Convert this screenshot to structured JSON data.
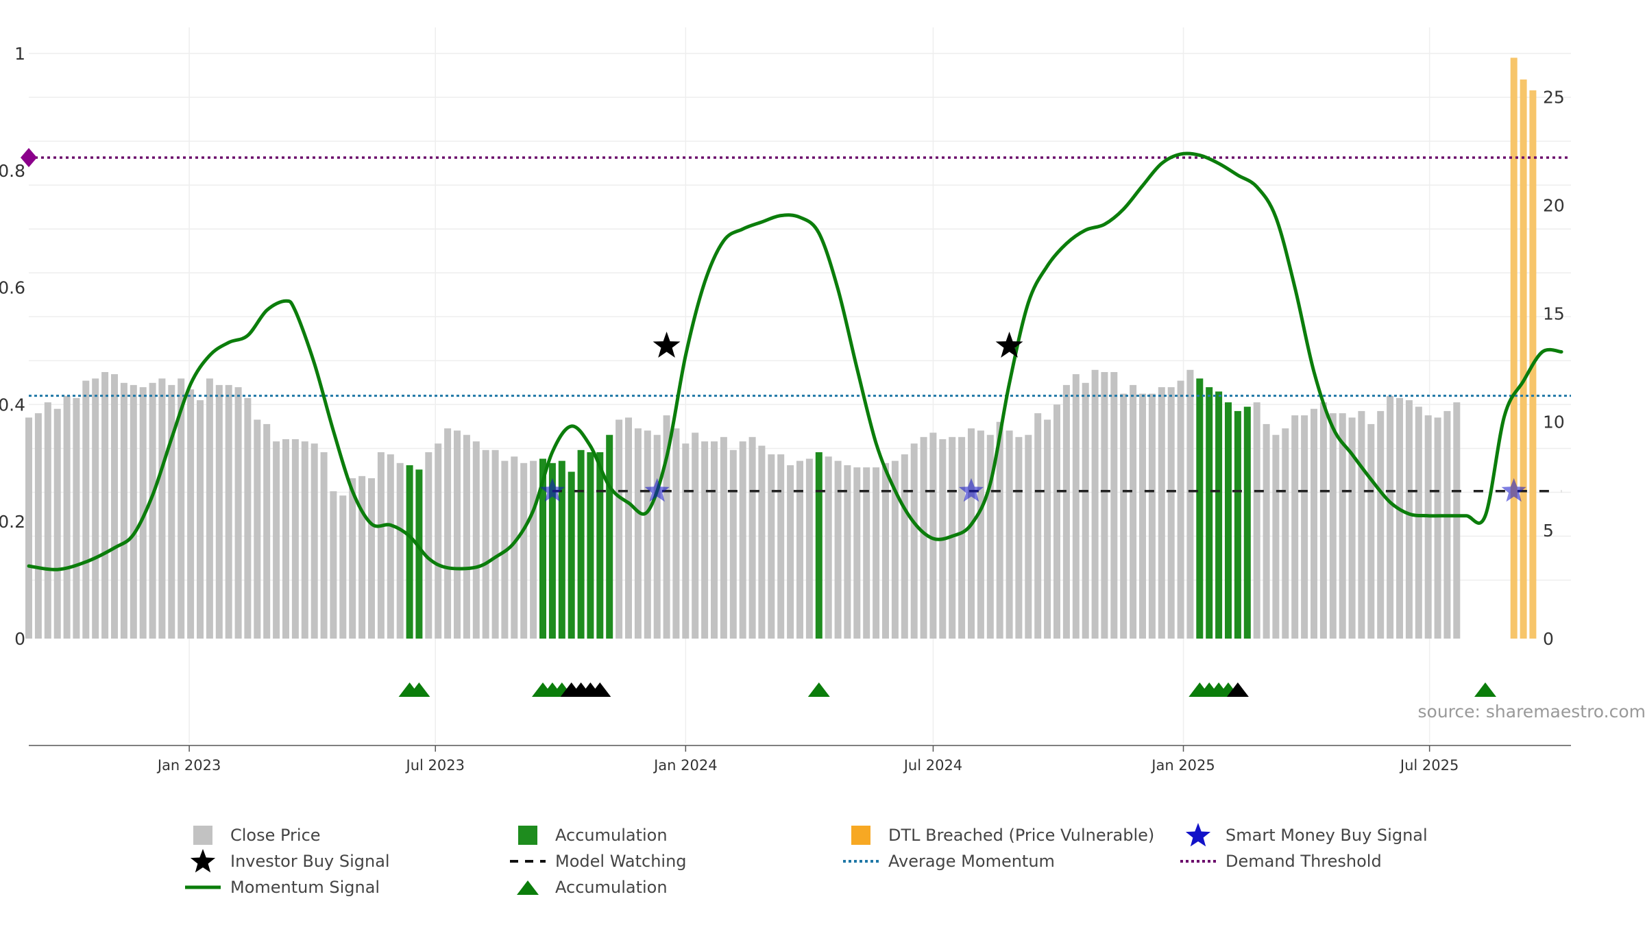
{
  "chart_data": {
    "type": "bar",
    "source_text": "source: sharemaestro.com",
    "left_axis": {
      "range": [
        0,
        1
      ],
      "ticks": [
        "0",
        "0.2",
        "0.4",
        "0.6",
        "0.8",
        "1"
      ]
    },
    "right_axis": {
      "range": [
        0,
        27
      ],
      "ticks": [
        "0",
        "5",
        "10",
        "15",
        "20",
        "25"
      ]
    },
    "x_axis": {
      "start": "2022-09-05",
      "end": "2025-10-13",
      "ticks": [
        {
          "date": "2023-01-01",
          "label": "Jan 2023"
        },
        {
          "date": "2023-07-01",
          "label": "Jul 2023"
        },
        {
          "date": "2024-01-01",
          "label": "Jan 2024"
        },
        {
          "date": "2024-07-01",
          "label": "Jul 2024"
        },
        {
          "date": "2025-01-01",
          "label": "Jan 2025"
        },
        {
          "date": "2025-07-01",
          "label": "Jul 2025"
        }
      ]
    },
    "bars_start_week": "2022-09-05",
    "bars_interval_days": 7,
    "close_price": [
      10.2,
      10.4,
      10.9,
      10.6,
      11.2,
      11.1,
      11.9,
      12.0,
      12.3,
      12.2,
      11.8,
      11.7,
      11.6,
      11.8,
      12.0,
      11.7,
      12.0,
      11.5,
      11.0,
      12.0,
      11.7,
      11.7,
      11.6,
      11.1,
      10.1,
      9.9,
      9.1,
      9.2,
      9.2,
      9.1,
      9.0,
      8.6,
      6.8,
      6.6,
      7.4,
      7.5,
      7.4,
      8.6,
      8.5,
      8.1,
      8.0,
      7.8,
      8.6,
      9.0,
      9.7,
      9.6,
      9.4,
      9.1,
      8.7,
      8.7,
      8.2,
      8.4,
      8.1,
      8.2,
      8.3,
      8.1,
      8.2,
      7.7,
      8.7,
      8.6,
      8.6,
      9.4,
      10.1,
      10.2,
      9.7,
      9.6,
      9.4,
      10.3,
      9.7,
      9.0,
      9.5,
      9.1,
      9.1,
      9.3,
      8.7,
      9.1,
      9.3,
      8.9,
      8.5,
      8.5,
      8.0,
      8.2,
      8.3,
      8.6,
      8.4,
      8.2,
      8.0,
      7.9,
      7.9,
      7.9,
      8.1,
      8.2,
      8.5,
      9.0,
      9.3,
      9.5,
      9.2,
      9.3,
      9.3,
      9.7,
      9.6,
      9.4,
      10.0,
      9.6,
      9.3,
      9.4,
      10.4,
      10.1,
      10.8,
      11.7,
      12.2,
      11.8,
      12.4,
      12.3,
      12.3,
      11.3,
      11.7,
      11.3,
      11.3,
      11.6,
      11.6,
      11.9,
      12.4,
      12.0,
      11.6,
      11.4,
      10.9,
      10.5,
      10.7,
      10.9,
      9.9,
      9.4,
      9.7,
      10.3,
      10.3,
      10.6,
      10.9,
      10.4,
      10.4,
      10.2,
      10.5,
      9.9,
      10.5,
      11.2,
      11.1,
      11.0,
      10.7,
      10.3,
      10.2,
      10.5,
      10.9
    ],
    "accumulation_weeks": [
      40,
      41,
      54,
      55,
      56,
      57,
      58,
      59,
      60,
      61,
      83,
      123,
      124,
      125,
      126,
      127,
      128,
      153
    ],
    "dtl_breached": {
      "start_week": 156,
      "values": [
        26.8,
        25.8,
        25.3
      ]
    },
    "momentum_signal": {
      "points": [
        [
          "2022-09-05",
          0.124
        ],
        [
          "2022-09-26",
          0.118
        ],
        [
          "2022-10-17",
          0.131
        ],
        [
          "2022-11-07",
          0.155
        ],
        [
          "2022-11-21",
          0.178
        ],
        [
          "2022-12-05",
          0.245
        ],
        [
          "2022-12-19",
          0.342
        ],
        [
          "2023-01-02",
          0.435
        ],
        [
          "2023-01-16",
          0.484
        ],
        [
          "2023-01-30",
          0.506
        ],
        [
          "2023-02-13",
          0.518
        ],
        [
          "2023-02-27",
          0.561
        ],
        [
          "2023-03-13",
          0.577
        ],
        [
          "2023-03-20",
          0.56
        ],
        [
          "2023-04-03",
          0.47
        ],
        [
          "2023-04-17",
          0.355
        ],
        [
          "2023-05-01",
          0.252
        ],
        [
          "2023-05-15",
          0.196
        ],
        [
          "2023-05-29",
          0.194
        ],
        [
          "2023-06-12",
          0.175
        ],
        [
          "2023-06-26",
          0.137
        ],
        [
          "2023-07-10",
          0.121
        ],
        [
          "2023-07-31",
          0.122
        ],
        [
          "2023-08-14",
          0.139
        ],
        [
          "2023-08-28",
          0.164
        ],
        [
          "2023-09-11",
          0.219
        ],
        [
          "2023-09-25",
          0.319
        ],
        [
          "2023-10-09",
          0.363
        ],
        [
          "2023-10-23",
          0.329
        ],
        [
          "2023-11-06",
          0.26
        ],
        [
          "2023-11-20",
          0.232
        ],
        [
          "2023-12-04",
          0.217
        ],
        [
          "2023-12-18",
          0.31
        ],
        [
          "2024-01-01",
          0.484
        ],
        [
          "2024-01-15",
          0.609
        ],
        [
          "2024-01-29",
          0.68
        ],
        [
          "2024-02-12",
          0.7
        ],
        [
          "2024-02-26",
          0.712
        ],
        [
          "2024-03-11",
          0.723
        ],
        [
          "2024-03-25",
          0.72
        ],
        [
          "2024-04-08",
          0.693
        ],
        [
          "2024-04-22",
          0.597
        ],
        [
          "2024-05-06",
          0.462
        ],
        [
          "2024-05-20",
          0.334
        ],
        [
          "2024-06-03",
          0.253
        ],
        [
          "2024-06-17",
          0.198
        ],
        [
          "2024-07-01",
          0.171
        ],
        [
          "2024-07-15",
          0.175
        ],
        [
          "2024-07-29",
          0.195
        ],
        [
          "2024-08-12",
          0.265
        ],
        [
          "2024-08-26",
          0.436
        ],
        [
          "2024-09-09",
          0.574
        ],
        [
          "2024-09-23",
          0.637
        ],
        [
          "2024-10-07",
          0.675
        ],
        [
          "2024-10-21",
          0.698
        ],
        [
          "2024-11-04",
          0.708
        ],
        [
          "2024-11-18",
          0.734
        ],
        [
          "2024-12-02",
          0.774
        ],
        [
          "2024-12-16",
          0.812
        ],
        [
          "2024-12-30",
          0.828
        ],
        [
          "2025-01-13",
          0.826
        ],
        [
          "2025-01-27",
          0.812
        ],
        [
          "2025-02-10",
          0.792
        ],
        [
          "2025-02-24",
          0.772
        ],
        [
          "2025-03-10",
          0.72
        ],
        [
          "2025-03-24",
          0.6
        ],
        [
          "2025-04-07",
          0.456
        ],
        [
          "2025-04-21",
          0.36
        ],
        [
          "2025-05-05",
          0.315
        ],
        [
          "2025-05-19",
          0.272
        ],
        [
          "2025-06-02",
          0.233
        ],
        [
          "2025-06-16",
          0.213
        ],
        [
          "2025-06-30",
          0.21
        ],
        [
          "2025-07-14",
          0.21
        ],
        [
          "2025-07-28",
          0.21
        ],
        [
          "2025-08-11",
          0.21
        ],
        [
          "2025-08-25",
          0.38
        ],
        [
          "2025-09-08",
          0.44
        ],
        [
          "2025-09-22",
          0.49
        ],
        [
          "2025-10-06",
          0.49
        ]
      ]
    },
    "average_momentum": 0.415,
    "demand_threshold": 0.822,
    "model_watching": {
      "value": 0.252,
      "start": "2023-09-25",
      "end": "2025-10-06"
    },
    "investor_buy_signals": [
      {
        "date": "2023-12-18",
        "value": 0.5
      },
      {
        "date": "2024-08-26",
        "value": 0.5
      }
    ],
    "smart_money_buy_signals": [
      {
        "date": "2023-09-25",
        "value": 0.252
      },
      {
        "date": "2023-12-11",
        "value": 0.252
      },
      {
        "date": "2024-07-29",
        "value": 0.252
      },
      {
        "date": "2025-09-01",
        "value": 0.252
      }
    ],
    "accumulation_markers": [
      {
        "week": 40,
        "color": "green"
      },
      {
        "week": 41,
        "color": "green"
      },
      {
        "week": 54,
        "color": "green"
      },
      {
        "week": 55,
        "color": "green"
      },
      {
        "week": 56,
        "color": "green"
      },
      {
        "week": 57,
        "color": "black"
      },
      {
        "week": 58,
        "color": "black"
      },
      {
        "week": 59,
        "color": "black"
      },
      {
        "week": 60,
        "color": "black"
      },
      {
        "week": 83,
        "color": "green"
      },
      {
        "week": 123,
        "color": "green"
      },
      {
        "week": 124,
        "color": "green"
      },
      {
        "week": 125,
        "color": "green"
      },
      {
        "week": 126,
        "color": "green"
      },
      {
        "week": 127,
        "color": "black"
      },
      {
        "week": 153,
        "color": "green"
      }
    ],
    "colors": {
      "close_price": "#c2c2c2",
      "accumulation": "#1e8c1e",
      "dtl": "#f7c56a",
      "momentum": "#0b7d0b",
      "average_momentum": "#1f77a6",
      "demand_threshold": "#6b0b6b",
      "smart_money": "#1212c8",
      "investor": "#000000",
      "model_watching": "#222222"
    },
    "legend": [
      {
        "label": "Close Price",
        "symbol": "grey-square"
      },
      {
        "label": "Accumulation",
        "symbol": "green-square"
      },
      {
        "label": "DTL Breached (Price Vulnerable)",
        "symbol": "orange-square"
      },
      {
        "label": "Smart Money Buy Signal",
        "symbol": "blue-star"
      },
      {
        "label": "Investor Buy Signal",
        "symbol": "black-star"
      },
      {
        "label": "Model Watching",
        "symbol": "dashed-line"
      },
      {
        "label": "Average Momentum",
        "symbol": "dotted-line"
      },
      {
        "label": "Demand Threshold",
        "symbol": "dotted-purple-line"
      },
      {
        "label": "Momentum Signal",
        "symbol": "green-line"
      },
      {
        "label": "Accumulation",
        "symbol": "green-triangle"
      }
    ]
  }
}
